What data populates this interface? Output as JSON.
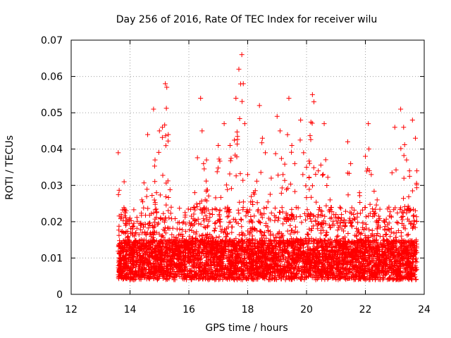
{
  "chart_data": {
    "type": "scatter",
    "title": "Day 256 of 2016, Rate Of TEC Index for receiver wilu",
    "xlabel": "GPS time / hours",
    "ylabel": "ROTI / TECUs",
    "xlim": [
      12,
      24
    ],
    "ylim": [
      0,
      0.07
    ],
    "x_ticks": [
      "12",
      "14",
      "16",
      "18",
      "20",
      "22",
      "24"
    ],
    "y_ticks": [
      "0",
      "0.01",
      "0.02",
      "0.03",
      "0.04",
      "0.05",
      "0.06",
      "0.07"
    ],
    "grid": true,
    "marker": "+",
    "color": "#ff0000",
    "series": [
      {
        "name": "ROTI",
        "x": [
          13.6,
          13.7,
          13.8,
          14.0,
          14.2,
          14.4,
          14.6,
          14.8,
          14.85,
          14.9,
          15.0,
          15.1,
          15.2,
          15.25,
          15.3,
          15.4,
          15.6,
          15.8,
          16.0,
          16.2,
          16.4,
          16.45,
          16.5,
          16.6,
          16.8,
          17.0,
          17.2,
          17.4,
          17.6,
          17.7,
          17.8,
          17.85,
          17.9,
          18.0,
          18.2,
          18.4,
          18.5,
          18.6,
          18.8,
          19.0,
          19.1,
          19.2,
          19.4,
          19.5,
          19.6,
          19.8,
          19.9,
          20.0,
          20.2,
          20.25,
          20.4,
          20.6,
          20.8,
          21.0,
          21.2,
          21.4,
          21.5,
          21.6,
          21.8,
          22.0,
          22.1,
          22.2,
          22.4,
          22.5,
          22.6,
          22.8,
          23.0,
          23.2,
          23.3,
          23.4,
          23.5,
          23.6,
          23.7,
          23.75
        ],
        "y": [
          0.039,
          0.022,
          0.031,
          0.021,
          0.017,
          0.026,
          0.044,
          0.051,
          0.037,
          0.028,
          0.045,
          0.046,
          0.058,
          0.057,
          0.044,
          0.024,
          0.018,
          0.016,
          0.015,
          0.028,
          0.054,
          0.045,
          0.036,
          0.037,
          0.022,
          0.041,
          0.047,
          0.041,
          0.054,
          0.062,
          0.066,
          0.058,
          0.047,
          0.033,
          0.028,
          0.052,
          0.043,
          0.039,
          0.032,
          0.049,
          0.045,
          0.033,
          0.054,
          0.041,
          0.036,
          0.048,
          0.039,
          0.035,
          0.055,
          0.053,
          0.034,
          0.047,
          0.026,
          0.022,
          0.018,
          0.042,
          0.036,
          0.022,
          0.028,
          0.038,
          0.047,
          0.033,
          0.026,
          0.016,
          0.013,
          0.024,
          0.046,
          0.051,
          0.046,
          0.037,
          0.034,
          0.048,
          0.043,
          0.034
        ]
      }
    ]
  }
}
